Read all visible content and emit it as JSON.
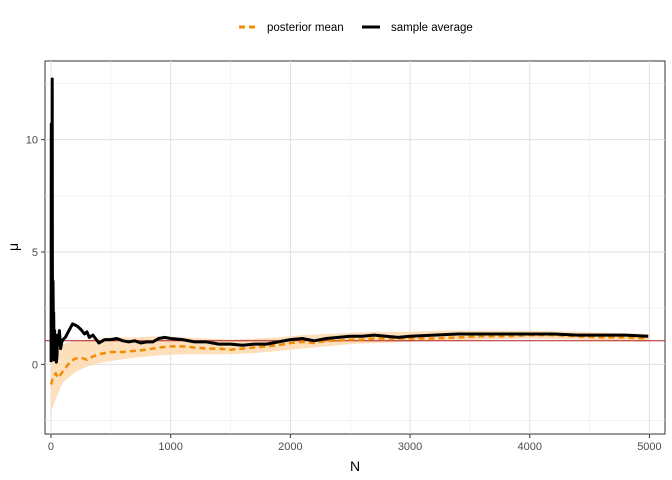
{
  "chart_data": {
    "type": "line",
    "title": "",
    "xlabel": "N",
    "ylabel": "μ",
    "xlim": [
      -50,
      5130
    ],
    "ylim": [
      -3.1,
      13.5
    ],
    "x_ticks": [
      0,
      1000,
      2000,
      3000,
      4000,
      5000
    ],
    "x_tick_labels": [
      "0",
      "1000",
      "2000",
      "3000",
      "4000",
      "5000"
    ],
    "y_ticks": [
      0,
      5,
      10
    ],
    "y_tick_labels": [
      "0",
      "5",
      "10"
    ],
    "grid": true,
    "legend_position": "top",
    "reference_line": {
      "y": 1.05,
      "color": "#b22222"
    },
    "band": {
      "name": "credible interval",
      "color": "#fdd9b0",
      "x": [
        1,
        50,
        100,
        200,
        300,
        400,
        500,
        700,
        900,
        1100,
        1300,
        1500,
        1700,
        1900,
        2100,
        2300,
        2500,
        2700,
        3000,
        3300,
        3600,
        4000,
        4400,
        4700,
        5000
      ],
      "lower": [
        -2.1,
        -1.4,
        -0.8,
        -0.35,
        -0.1,
        0.05,
        0.15,
        0.3,
        0.4,
        0.45,
        0.45,
        0.45,
        0.5,
        0.6,
        0.7,
        0.8,
        0.9,
        0.95,
        1.0,
        1.05,
        1.1,
        1.15,
        1.1,
        1.05,
        1.0
      ],
      "upper": [
        0.3,
        0.5,
        0.9,
        1.05,
        1.1,
        1.15,
        1.2,
        1.2,
        1.25,
        1.2,
        1.15,
        1.1,
        1.15,
        1.2,
        1.3,
        1.35,
        1.4,
        1.45,
        1.45,
        1.5,
        1.5,
        1.5,
        1.45,
        1.4,
        1.35
      ]
    },
    "series": [
      {
        "name": "posterior mean",
        "color": "#f28c00",
        "dash": "dashed",
        "x": [
          1,
          10,
          25,
          40,
          60,
          80,
          100,
          130,
          160,
          200,
          250,
          300,
          350,
          400,
          450,
          500,
          600,
          700,
          800,
          900,
          1000,
          1100,
          1200,
          1300,
          1400,
          1500,
          1600,
          1700,
          1800,
          1900,
          2000,
          2100,
          2200,
          2300,
          2400,
          2500,
          2600,
          2700,
          2800,
          2900,
          3000,
          3200,
          3400,
          3600,
          3800,
          4000,
          4200,
          4400,
          4600,
          4800,
          4990
        ],
        "y": [
          -0.9,
          -0.7,
          -0.5,
          -0.4,
          -0.6,
          -0.45,
          -0.3,
          -0.1,
          0.1,
          0.25,
          0.3,
          0.2,
          0.35,
          0.45,
          0.5,
          0.55,
          0.55,
          0.6,
          0.65,
          0.75,
          0.8,
          0.8,
          0.75,
          0.7,
          0.7,
          0.65,
          0.7,
          0.75,
          0.8,
          0.85,
          0.95,
          1.0,
          0.95,
          1.05,
          1.05,
          1.1,
          1.1,
          1.15,
          1.15,
          1.15,
          1.15,
          1.15,
          1.2,
          1.25,
          1.25,
          1.3,
          1.3,
          1.25,
          1.2,
          1.2,
          1.15
        ]
      },
      {
        "name": "sample average",
        "color": "#000000",
        "dash": "solid",
        "x": [
          1,
          3,
          5,
          8,
          10,
          12,
          15,
          17,
          20,
          23,
          26,
          30,
          35,
          40,
          45,
          50,
          55,
          60,
          70,
          80,
          90,
          100,
          120,
          140,
          160,
          180,
          200,
          220,
          250,
          280,
          300,
          320,
          350,
          400,
          450,
          500,
          550,
          600,
          650,
          700,
          750,
          800,
          850,
          900,
          950,
          1000,
          1100,
          1200,
          1300,
          1400,
          1500,
          1600,
          1700,
          1800,
          1900,
          2000,
          2100,
          2200,
          2300,
          2400,
          2500,
          2600,
          2700,
          2800,
          2900,
          3000,
          3200,
          3400,
          3600,
          3800,
          4000,
          4200,
          4400,
          4600,
          4800,
          4990
        ],
        "y": [
          0.1,
          10.7,
          6.0,
          3.0,
          12.7,
          4.0,
          2.5,
          3.7,
          1.7,
          2.3,
          0.2,
          1.5,
          0.8,
          0.5,
          0.1,
          0.4,
          1.3,
          0.9,
          1.5,
          0.7,
          1.0,
          1.1,
          1.2,
          1.4,
          1.6,
          1.8,
          1.75,
          1.7,
          1.55,
          1.35,
          1.45,
          1.2,
          1.3,
          0.95,
          1.1,
          1.1,
          1.15,
          1.05,
          1.0,
          1.05,
          0.95,
          1.0,
          1.0,
          1.15,
          1.2,
          1.15,
          1.1,
          1.0,
          1.0,
          0.9,
          0.9,
          0.85,
          0.9,
          0.9,
          1.0,
          1.1,
          1.15,
          1.05,
          1.15,
          1.2,
          1.25,
          1.25,
          1.3,
          1.25,
          1.2,
          1.25,
          1.3,
          1.35,
          1.35,
          1.35,
          1.35,
          1.35,
          1.3,
          1.3,
          1.3,
          1.25
        ]
      }
    ]
  }
}
